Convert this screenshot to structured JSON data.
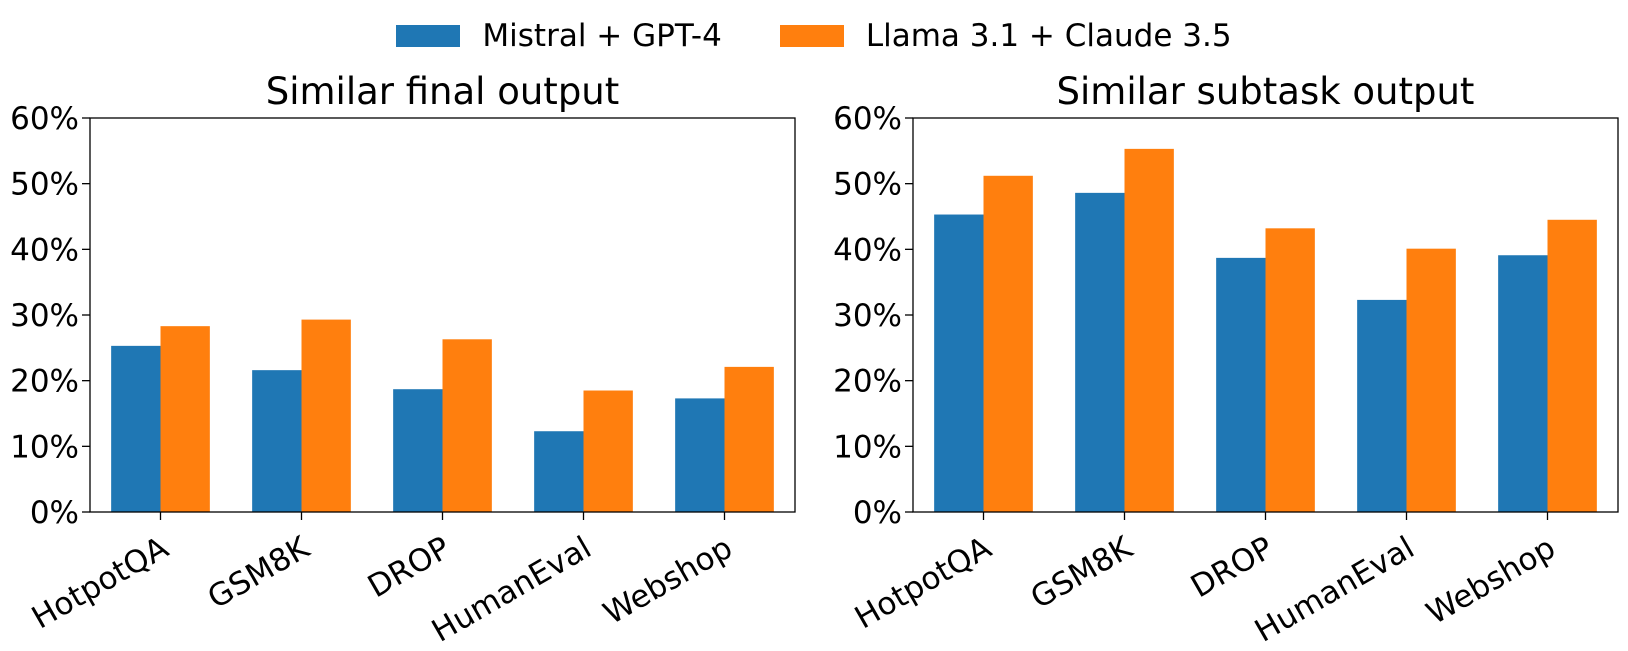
{
  "legend": {
    "items": [
      {
        "label": "Mistral + GPT-4",
        "color": "#1f77b4"
      },
      {
        "label": "Llama 3.1 + Claude 3.5",
        "color": "#ff7f0e"
      }
    ]
  },
  "chart_data": [
    {
      "type": "bar",
      "title": "Similar final output",
      "categories": [
        "HotpotQA",
        "GSM8K",
        "DROP",
        "HumanEval",
        "Webshop"
      ],
      "series": [
        {
          "name": "Mistral + GPT-4",
          "color": "#1f77b4",
          "values": [
            25.3,
            21.6,
            18.7,
            12.3,
            17.3
          ]
        },
        {
          "name": "Llama 3.1 + Claude 3.5",
          "color": "#ff7f0e",
          "values": [
            28.3,
            29.3,
            26.3,
            18.5,
            22.1
          ]
        }
      ],
      "xlabel": "",
      "ylabel": "",
      "ylim": [
        0,
        60
      ],
      "yticks": [
        0,
        10,
        20,
        30,
        40,
        50,
        60
      ],
      "ytick_labels": [
        "0%",
        "10%",
        "20%",
        "30%",
        "40%",
        "50%",
        "60%"
      ],
      "grid": false
    },
    {
      "type": "bar",
      "title": "Similar subtask output",
      "categories": [
        "HotpotQA",
        "GSM8K",
        "DROP",
        "HumanEval",
        "Webshop"
      ],
      "series": [
        {
          "name": "Mistral + GPT-4",
          "color": "#1f77b4",
          "values": [
            45.3,
            48.6,
            38.7,
            32.3,
            39.1
          ]
        },
        {
          "name": "Llama 3.1 + Claude 3.5",
          "color": "#ff7f0e",
          "values": [
            51.2,
            55.3,
            43.2,
            40.1,
            44.5
          ]
        }
      ],
      "xlabel": "",
      "ylabel": "",
      "ylim": [
        0,
        60
      ],
      "yticks": [
        0,
        10,
        20,
        30,
        40,
        50,
        60
      ],
      "ytick_labels": [
        "0%",
        "10%",
        "20%",
        "30%",
        "40%",
        "50%",
        "60%"
      ],
      "grid": false
    }
  ]
}
